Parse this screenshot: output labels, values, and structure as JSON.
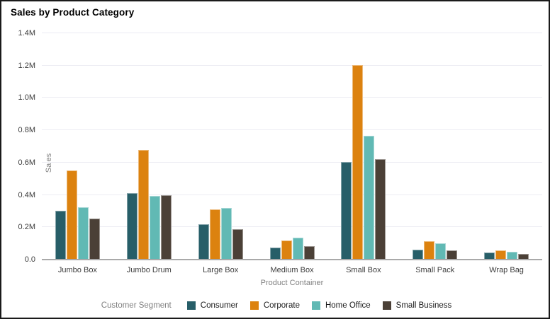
{
  "page": {
    "title": "Sales by Product Category"
  },
  "chart_data": {
    "type": "bar",
    "title": "Sales by Product Category",
    "xlabel": "Product Container",
    "ylabel": "Sales",
    "legend_title": "Customer Segment",
    "legend_position": "bottom",
    "grid": true,
    "ylim_millions": [
      0,
      1.4
    ],
    "ytick_interval_millions": 0.2,
    "ytick_labels": [
      "0.0",
      "0.2M",
      "0.4M",
      "0.6M",
      "0.8M",
      "1.0M",
      "1.2M",
      "1.4M"
    ],
    "categories": [
      "Jumbo Box",
      "Jumbo Drum",
      "Large Box",
      "Medium Box",
      "Small Box",
      "Small Pack",
      "Wrap Bag"
    ],
    "series": [
      {
        "name": "Consumer",
        "color": "#275e68",
        "values_millions": [
          0.3,
          0.41,
          0.22,
          0.075,
          0.605,
          0.06,
          0.045
        ]
      },
      {
        "name": "Corporate",
        "color": "#dc820f",
        "values_millions": [
          0.55,
          0.68,
          0.31,
          0.12,
          1.205,
          0.115,
          0.055
        ]
      },
      {
        "name": "Home Office",
        "color": "#61b9b4",
        "values_millions": [
          0.325,
          0.395,
          0.32,
          0.135,
          0.765,
          0.1,
          0.05
        ]
      },
      {
        "name": "Small Business",
        "color": "#4b4037",
        "values_millions": [
          0.255,
          0.4,
          0.19,
          0.085,
          0.62,
          0.055,
          0.035
        ]
      }
    ]
  },
  "colors": {
    "gridline": "#ececf3",
    "axis_line": "#a9a9a9",
    "tick_label": "#3c3c3c",
    "axis_title": "#808080",
    "legend_title": "#808080",
    "legend_label": "#1a1a1a",
    "title": "#000000",
    "frame_border": "#1a1a1a",
    "background": "#ffffff"
  }
}
